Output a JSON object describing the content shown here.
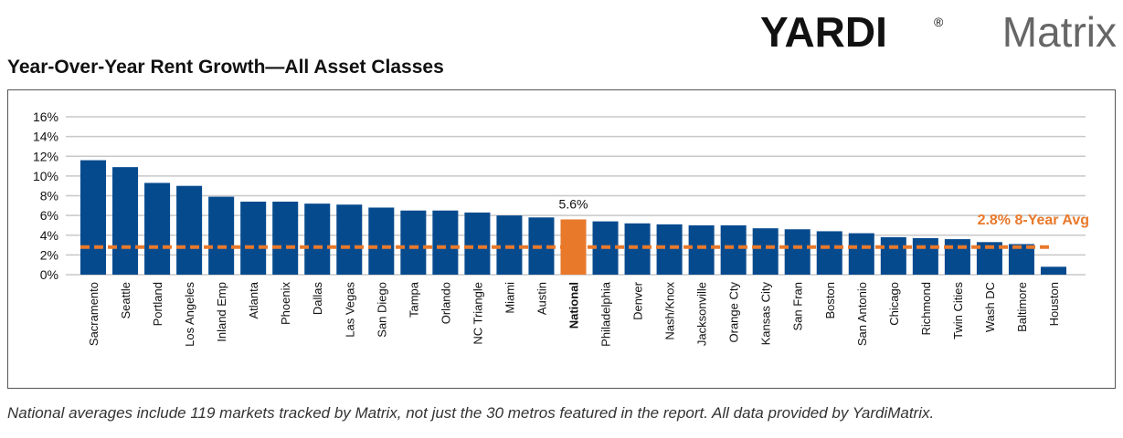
{
  "logo": {
    "brand": "YARDI",
    "mark": "®",
    "product": "Matrix"
  },
  "chart_data": {
    "type": "bar",
    "title": "Year-Over-Year Rent Growth—All Asset Classes",
    "note": "National averages include 119 markets tracked by Matrix, not just the 30 metros featured in the report. All data provided by YardiMatrix.",
    "categories": [
      "Sacramento",
      "Seattle",
      "Portland",
      "Los Angeles",
      "Inland Emp",
      "Atlanta",
      "Phoenix",
      "Dallas",
      "Las Vegas",
      "San Diego",
      "Tampa",
      "Orlando",
      "NC Triangle",
      "Miami",
      "Austin",
      "National",
      "Philadelphia",
      "Denver",
      "Nash/Knox",
      "Jacksonville",
      "Orange Cty",
      "Kansas City",
      "San Fran",
      "Boston",
      "San Antonio",
      "Chicago",
      "Richmond",
      "Twin Cities",
      "Wash DC",
      "Baltimore",
      "Houston"
    ],
    "values": [
      11.6,
      10.9,
      9.3,
      9.0,
      7.9,
      7.4,
      7.4,
      7.2,
      7.1,
      6.8,
      6.5,
      6.5,
      6.3,
      6.0,
      5.8,
      5.6,
      5.4,
      5.2,
      5.1,
      5.0,
      5.0,
      4.7,
      4.6,
      4.4,
      4.2,
      3.8,
      3.7,
      3.6,
      3.3,
      3.1,
      0.8
    ],
    "value_labels": [
      null,
      null,
      null,
      null,
      null,
      null,
      null,
      null,
      null,
      null,
      null,
      null,
      null,
      null,
      null,
      "5.6%",
      null,
      null,
      null,
      null,
      null,
      null,
      null,
      null,
      null,
      null,
      null,
      null,
      null,
      null,
      null
    ],
    "colors": [
      "#064a8e",
      "#064a8e",
      "#064a8e",
      "#064a8e",
      "#064a8e",
      "#064a8e",
      "#064a8e",
      "#064a8e",
      "#064a8e",
      "#064a8e",
      "#064a8e",
      "#064a8e",
      "#064a8e",
      "#064a8e",
      "#064a8e",
      "#e8792b",
      "#064a8e",
      "#064a8e",
      "#064a8e",
      "#064a8e",
      "#064a8e",
      "#064a8e",
      "#064a8e",
      "#064a8e",
      "#064a8e",
      "#064a8e",
      "#064a8e",
      "#064a8e",
      "#064a8e",
      "#064a8e",
      "#064a8e"
    ],
    "reference_line": {
      "value": 2.8,
      "label": "2.8% 8-Year Avg",
      "color": "#e8792b"
    },
    "ylim": [
      0,
      16
    ],
    "yticks": [
      {
        "value": 0,
        "label": "0%"
      },
      {
        "value": 2,
        "label": "2%"
      },
      {
        "value": 4,
        "label": "4%"
      },
      {
        "value": 6,
        "label": "6%"
      },
      {
        "value": 8,
        "label": "8%"
      },
      {
        "value": 10,
        "label": "10%"
      },
      {
        "value": 12,
        "label": "12%"
      },
      {
        "value": 14,
        "label": "14%"
      },
      {
        "value": 16,
        "label": "16%"
      }
    ],
    "grid": true
  }
}
